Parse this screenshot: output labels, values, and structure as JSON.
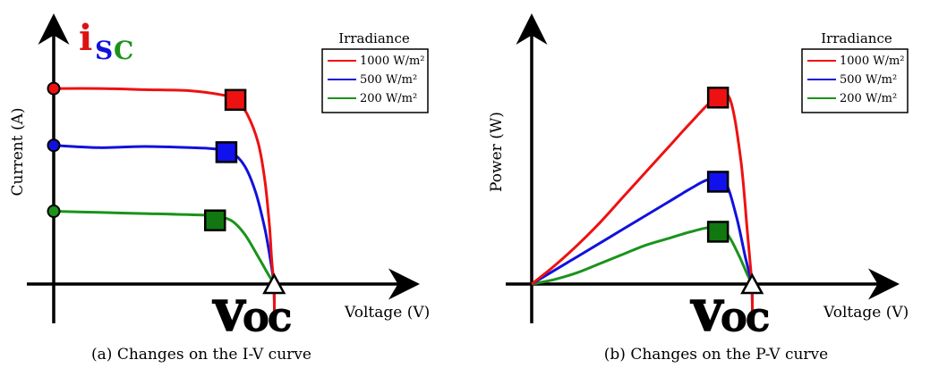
{
  "figure": {
    "left_panel": {
      "caption": "(a) Changes on the I-V curve",
      "ylabel": "Current (A)",
      "xlabel": "Voltage (V)",
      "isc_main": "i",
      "isc_sub_s": "S",
      "isc_sub_c": "C",
      "voc_main": "V",
      "voc_sub": "OC",
      "legend_title": "Irradiance"
    },
    "right_panel": {
      "caption": "(b) Changes on the P-V curve",
      "ylabel": "Power (W)",
      "xlabel": "Voltage (V)",
      "voc_main": "V",
      "voc_sub": "OC",
      "legend_title": "Irradiance"
    },
    "series_colors": [
      "#ee1111",
      "#1111dd",
      "#1a931a"
    ],
    "mpp_colors": [
      "#ee1111",
      "#1111ee",
      "#117711"
    ],
    "isc_colors": {
      "i": "#dd1111",
      "s": "#1111dd",
      "c": "#1a931a"
    }
  },
  "chart_data": [
    {
      "type": "line",
      "title": "",
      "xlabel": "Voltage (V)",
      "ylabel": "Current (A)",
      "xlim": [
        0,
        1.3
      ],
      "ylim": [
        0,
        1.1
      ],
      "grid": false,
      "legend": {
        "title": "Irradiance",
        "placement": "top-right"
      },
      "series": [
        {
          "name": "1000 W/m²",
          "x": [
            0,
            0.2,
            0.4,
            0.6,
            0.75,
            0.8,
            0.85,
            0.9,
            0.93,
            0.95,
            0.96,
            0.97
          ],
          "y": [
            0.86,
            0.86,
            0.855,
            0.85,
            0.83,
            0.81,
            0.75,
            0.62,
            0.45,
            0.25,
            0.1,
            0.0
          ],
          "mpp": [
            0.8,
            0.81
          ]
        },
        {
          "name": "500 W/m²",
          "x": [
            0,
            0.2,
            0.4,
            0.6,
            0.7,
            0.78,
            0.84,
            0.89,
            0.93,
            0.955,
            0.97
          ],
          "y": [
            0.61,
            0.6,
            0.605,
            0.6,
            0.595,
            0.58,
            0.52,
            0.4,
            0.24,
            0.1,
            0.0
          ],
          "mpp": [
            0.76,
            0.58
          ]
        },
        {
          "name": "200 W/m²",
          "x": [
            0,
            0.2,
            0.4,
            0.6,
            0.7,
            0.78,
            0.84,
            0.9,
            0.94,
            0.97
          ],
          "y": [
            0.32,
            0.315,
            0.31,
            0.305,
            0.3,
            0.28,
            0.22,
            0.12,
            0.05,
            0.0
          ],
          "mpp": [
            0.71,
            0.28
          ]
        }
      ],
      "markers": {
        "isc": [
          0.86,
          0.61,
          0.32
        ],
        "voc": 0.97
      }
    },
    {
      "type": "line",
      "title": "",
      "xlabel": "Voltage (V)",
      "ylabel": "Power (W)",
      "xlim": [
        0,
        1.3
      ],
      "ylim": [
        0,
        1.1
      ],
      "grid": false,
      "legend": {
        "title": "Irradiance",
        "placement": "top-right"
      },
      "series": [
        {
          "name": "1000 W/m²",
          "x": [
            0,
            0.1,
            0.2,
            0.3,
            0.4,
            0.5,
            0.6,
            0.7,
            0.8,
            0.87,
            0.92,
            0.95,
            0.97
          ],
          "y": [
            0,
            0.08,
            0.17,
            0.27,
            0.38,
            0.49,
            0.6,
            0.71,
            0.81,
            0.82,
            0.55,
            0.22,
            0.0
          ],
          "mpp": [
            0.82,
            0.82
          ]
        },
        {
          "name": "500 W/m²",
          "x": [
            0,
            0.1,
            0.2,
            0.3,
            0.4,
            0.5,
            0.6,
            0.7,
            0.78,
            0.85,
            0.9,
            0.94,
            0.97
          ],
          "y": [
            0,
            0.06,
            0.12,
            0.18,
            0.24,
            0.3,
            0.36,
            0.42,
            0.46,
            0.45,
            0.3,
            0.12,
            0.0
          ],
          "mpp": [
            0.82,
            0.45
          ]
        },
        {
          "name": "200 W/m²",
          "x": [
            0,
            0.1,
            0.2,
            0.3,
            0.4,
            0.5,
            0.6,
            0.7,
            0.8,
            0.86,
            0.91,
            0.95,
            0.97
          ],
          "y": [
            0,
            0.02,
            0.05,
            0.09,
            0.13,
            0.17,
            0.2,
            0.23,
            0.25,
            0.22,
            0.13,
            0.04,
            0.0
          ],
          "mpp": [
            0.82,
            0.23
          ]
        }
      ],
      "markers": {
        "voc": 0.97
      }
    }
  ]
}
